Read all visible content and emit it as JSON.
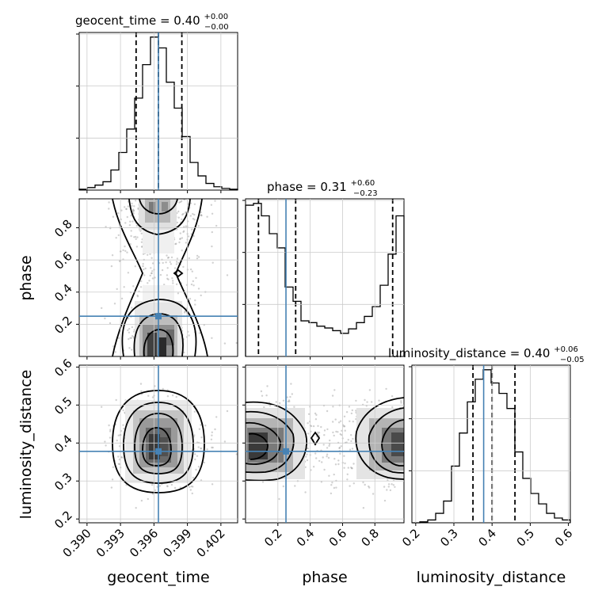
{
  "chart_data": {
    "type": "corner",
    "parameters": [
      "geocent_time",
      "phase",
      "luminosity_distance"
    ],
    "truth_color": "#4682b4",
    "truths": {
      "geocent_time": 0.3964,
      "phase": 0.25,
      "luminosity_distance": 0.378
    },
    "titles": {
      "geocent_time": {
        "text": "geocent_time = 0.40",
        "plus": "+0.00",
        "minus": "−0.00"
      },
      "phase": {
        "text": "phase = 0.31",
        "plus": "+0.60",
        "minus": "−0.23"
      },
      "luminosity_distance": {
        "text": "luminosity_distance = 0.40",
        "plus": "+0.06",
        "minus": "−0.05"
      }
    },
    "axes": {
      "geocent_time": {
        "range": [
          0.3893,
          0.4035
        ],
        "ticks": [
          0.39,
          0.393,
          0.396,
          0.399,
          0.402
        ],
        "tick_labels": [
          "0.390",
          "0.393",
          "0.396",
          "0.399",
          "0.402"
        ],
        "xlabel": "geocent_time"
      },
      "phase": {
        "range": [
          0.0,
          0.98
        ],
        "ticks": [
          0.2,
          0.4,
          0.6,
          0.8
        ],
        "tick_labels": [
          "0.2",
          "0.4",
          "0.6",
          "0.8"
        ],
        "xlabel": "phase",
        "ylabel": "phase"
      },
      "luminosity_distance": {
        "range": [
          0.19,
          0.605
        ],
        "ticks": [
          0.2,
          0.3,
          0.4,
          0.5,
          0.6
        ],
        "tick_labels": [
          "0.2",
          "0.3",
          "0.4",
          "0.5",
          "0.6"
        ],
        "xlabel": "luminosity_distance",
        "ylabel": "luminosity_distance"
      }
    },
    "histograms": {
      "geocent_time": {
        "bin_edges": [
          0.3893,
          0.39001,
          0.39072,
          0.39143,
          0.39214,
          0.39285,
          0.39356,
          0.39427,
          0.39498,
          0.39569,
          0.3964,
          0.39711,
          0.39782,
          0.39853,
          0.39924,
          0.39995,
          0.40066,
          0.40137,
          0.40208,
          0.40279,
          0.4035
        ],
        "counts": [
          1,
          3,
          6,
          10,
          24,
          45,
          73,
          110,
          150,
          183,
          170,
          129,
          98,
          64,
          33,
          17,
          8,
          4,
          2,
          1
        ],
        "quantiles": [
          0.3944,
          0.3964,
          0.3985
        ]
      },
      "phase": {
        "bin_edges": [
          0.0,
          0.049,
          0.098,
          0.147,
          0.196,
          0.245,
          0.294,
          0.343,
          0.392,
          0.441,
          0.49,
          0.539,
          0.588,
          0.637,
          0.686,
          0.735,
          0.784,
          0.833,
          0.882,
          0.931,
          0.98
        ],
        "counts": [
          170,
          172,
          158,
          138,
          122,
          78,
          62,
          40,
          38,
          34,
          32,
          29,
          26,
          31,
          38,
          45,
          56,
          80,
          115,
          158
        ],
        "quantiles": [
          0.08,
          0.31,
          0.91
        ]
      },
      "luminosity_distance": {
        "bin_edges": [
          0.19,
          0.21075,
          0.2315,
          0.25225,
          0.273,
          0.29375,
          0.3145,
          0.33525,
          0.356,
          0.37675,
          0.3975,
          0.41825,
          0.439,
          0.45975,
          0.4805,
          0.50125,
          0.522,
          0.54275,
          0.5635,
          0.58425,
          0.605
        ],
        "counts": [
          0,
          1,
          3,
          10,
          23,
          60,
          95,
          128,
          152,
          162,
          148,
          137,
          121,
          75,
          47,
          31,
          20,
          10,
          5,
          3
        ],
        "quantiles": [
          0.35,
          0.4,
          0.46
        ]
      }
    },
    "contour_pairs": [
      {
        "x": "geocent_time",
        "y": "phase"
      },
      {
        "x": "geocent_time",
        "y": "luminosity_distance"
      },
      {
        "x": "phase",
        "y": "luminosity_distance"
      }
    ],
    "grid": true
  }
}
